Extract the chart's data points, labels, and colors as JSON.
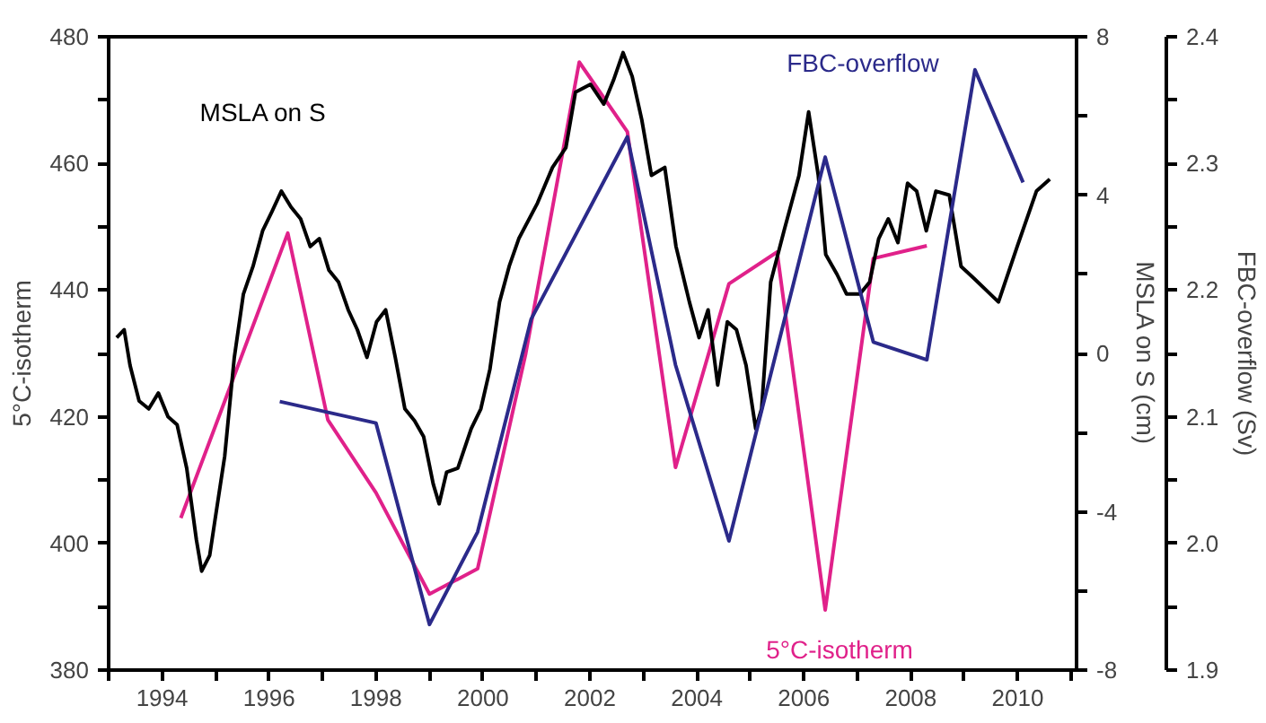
{
  "chart_data": {
    "type": "line",
    "ylabel": "5°C-isotherm",
    "y2label": "MSLA on S (cm)",
    "y3label": "FBC-overflow (Sv)",
    "grid": false,
    "line_style": "solid",
    "xlim": [
      1993,
      2011.1
    ],
    "xticks": [
      {
        "value": 1993,
        "label": null
      },
      1994,
      {
        "value": 1995,
        "label": null
      },
      1996,
      {
        "value": 1997,
        "label": null
      },
      1998,
      {
        "value": 1999,
        "label": null
      },
      2000,
      {
        "value": 2001,
        "label": null
      },
      2002,
      {
        "value": 2003,
        "label": null
      },
      2004,
      {
        "value": 2005,
        "label": null
      },
      2006,
      {
        "value": 2007,
        "label": null
      },
      2008,
      {
        "value": 2009,
        "label": null
      },
      2010,
      {
        "value": 2011,
        "label": null
      }
    ],
    "ylim": [
      380,
      480
    ],
    "yticks": [
      380,
      {
        "value": 390,
        "label": null
      },
      400,
      {
        "value": 410,
        "label": null
      },
      420,
      {
        "value": 430,
        "label": null
      },
      440,
      {
        "value": 450,
        "label": null
      },
      460,
      {
        "value": 470,
        "label": null
      },
      480
    ],
    "y2lim": [
      -8,
      8
    ],
    "y2ticks": [
      -8,
      {
        "value": -6,
        "label": null
      },
      -4,
      {
        "value": -2,
        "label": null
      },
      0,
      {
        "value": 2,
        "label": null
      },
      4,
      {
        "value": 6,
        "label": null
      },
      8
    ],
    "y3lim": [
      1.9,
      2.4
    ],
    "y3ticks": [
      {
        "value": 1.9,
        "label": "1.9"
      },
      {
        "value": 1.95,
        "label": null
      },
      {
        "value": 2.0,
        "label": "2.0"
      },
      {
        "value": 2.05,
        "label": null
      },
      {
        "value": 2.1,
        "label": "2.1"
      },
      {
        "value": 2.15,
        "label": null
      },
      {
        "value": 2.2,
        "label": "2.2"
      },
      {
        "value": 2.25,
        "label": null
      },
      {
        "value": 2.3,
        "label": "2.3"
      },
      {
        "value": 2.35,
        "label": null
      },
      {
        "value": 2.4,
        "label": "2.4"
      }
    ],
    "series": [
      {
        "name": "5°C-isotherm",
        "color": "#e0218a",
        "x": [
          1994.35,
          1996.35,
          1997.1,
          1998.0,
          1999.0,
          1999.9,
          2000.8,
          2001.8,
          2002.7,
          2003.6,
          2004.6,
          2005.5,
          2006.4,
          2007.3,
          2008.3
        ],
        "values": [
          404,
          449,
          419.5,
          408,
          392,
          396,
          430,
          476,
          465,
          412,
          441,
          446,
          389.5,
          445,
          447
        ]
      },
      {
        "name": "MSLA on S",
        "color": "#000000",
        "axis": "y2",
        "x": [
          1993.15,
          1993.29,
          1993.4,
          1993.57,
          1993.75,
          1993.93,
          1994.11,
          1994.28,
          1994.46,
          1994.64,
          1994.74,
          1994.89,
          1994.99,
          1995.17,
          1995.35,
          1995.52,
          1995.7,
          1995.88,
          1996.06,
          1996.23,
          1996.41,
          1996.59,
          1996.77,
          1996.94,
          1997.12,
          1997.3,
          1997.48,
          1997.65,
          1997.83,
          1998.01,
          1998.18,
          1998.36,
          1998.54,
          1998.72,
          1998.89,
          1999.07,
          1999.18,
          1999.32,
          1999.53,
          1999.78,
          1999.96,
          2000.13,
          2000.31,
          2000.49,
          2000.67,
          2001.02,
          2001.3,
          2001.55,
          2001.73,
          2002.01,
          2002.26,
          2002.44,
          2002.62,
          2002.79,
          2002.97,
          2003.15,
          2003.4,
          2003.61,
          2003.86,
          2004.04,
          2004.21,
          2004.39,
          2004.57,
          2004.74,
          2004.92,
          2005.1,
          2005.21,
          2005.38,
          2005.63,
          2005.91,
          2006.09,
          2006.27,
          2006.41,
          2006.62,
          2006.8,
          2007.05,
          2007.23,
          2007.4,
          2007.58,
          2007.76,
          2007.94,
          2008.11,
          2008.29,
          2008.47,
          2008.72,
          2008.94,
          2009.18,
          2009.64,
          2009.99,
          2010.35,
          2010.6
        ],
        "values": [
          0.4,
          0.6,
          -0.3,
          -1.2,
          -1.4,
          -1.0,
          -1.6,
          -1.8,
          -2.9,
          -4.7,
          -5.5,
          -5.1,
          -4.2,
          -2.6,
          -0.1,
          1.5,
          2.2,
          3.1,
          3.6,
          4.1,
          3.7,
          3.4,
          2.7,
          2.9,
          2.1,
          1.8,
          1.1,
          0.6,
          -0.1,
          0.8,
          1.1,
          -0.1,
          -1.4,
          -1.7,
          -2.1,
          -3.3,
          -3.8,
          -3.0,
          -2.9,
          -1.9,
          -1.4,
          -0.4,
          1.3,
          2.2,
          2.9,
          3.8,
          4.7,
          5.2,
          6.6,
          6.8,
          6.3,
          6.9,
          7.6,
          7.0,
          5.9,
          4.5,
          4.7,
          2.7,
          1.3,
          0.4,
          1.1,
          -0.8,
          0.8,
          0.6,
          -0.3,
          -1.9,
          -1.4,
          1.8,
          3.1,
          4.5,
          6.1,
          4.5,
          2.5,
          2.0,
          1.5,
          1.5,
          1.8,
          2.9,
          3.4,
          2.8,
          4.3,
          4.1,
          3.1,
          4.1,
          4.0,
          2.2,
          1.9,
          1.3,
          2.7,
          4.1,
          4.4
        ]
      },
      {
        "name": "FBC-overflow",
        "color": "#2b2a8a",
        "axis": "y3",
        "x": [
          1996.2,
          1998.0,
          1999.0,
          1999.9,
          2000.9,
          2002.7,
          2003.6,
          2004.6,
          2006.4,
          2007.3,
          2008.3,
          2009.2,
          2010.1
        ],
        "values": [
          2.112,
          2.095,
          1.936,
          2.009,
          2.177,
          2.321,
          2.141,
          2.002,
          2.305,
          2.159,
          2.145,
          2.374,
          2.285
        ]
      }
    ]
  }
}
